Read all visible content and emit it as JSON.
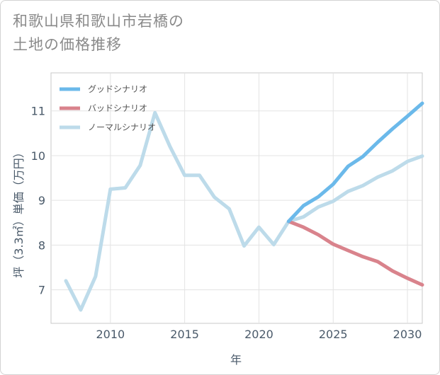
{
  "title_lines": [
    "和歌山県和歌山市岩橋の",
    "土地の価格推移"
  ],
  "chart_data": {
    "type": "line",
    "xlabel": "年",
    "ylabel": "坪（3.3㎡）単価（万円）",
    "xlim": [
      2006,
      2031
    ],
    "ylim": [
      6.25,
      11.85
    ],
    "xticks": [
      2010,
      2015,
      2020,
      2025,
      2030
    ],
    "yticks": [
      7,
      8,
      9,
      10,
      11
    ],
    "grid": true,
    "legend_position": "top-left",
    "series": [
      {
        "name": "グッドシナリオ",
        "color": "#6bb9ea",
        "x": [
          2022,
          2023,
          2024,
          2025,
          2026,
          2027,
          2028,
          2029,
          2030,
          2031
        ],
        "y": [
          8.53,
          8.88,
          9.08,
          9.36,
          9.76,
          9.98,
          10.3,
          10.6,
          10.88,
          11.17
        ]
      },
      {
        "name": "バッドシナリオ",
        "color": "#d9838c",
        "x": [
          2022,
          2023,
          2024,
          2025,
          2026,
          2027,
          2028,
          2029,
          2030,
          2031
        ],
        "y": [
          8.53,
          8.4,
          8.23,
          8.02,
          7.88,
          7.74,
          7.63,
          7.42,
          7.26,
          7.11
        ]
      },
      {
        "name": "ノーマルシナリオ",
        "color": "#bddbea",
        "x": [
          2007,
          2008,
          2009,
          2010,
          2011,
          2012,
          2013,
          2014,
          2015,
          2016,
          2017,
          2018,
          2019,
          2020,
          2021,
          2022,
          2023,
          2024,
          2025,
          2026,
          2027,
          2028,
          2029,
          2030,
          2031
        ],
        "y": [
          7.2,
          6.55,
          7.3,
          9.25,
          9.28,
          9.78,
          10.96,
          10.21,
          9.56,
          9.56,
          9.07,
          8.81,
          7.98,
          8.4,
          8.01,
          8.53,
          8.63,
          8.85,
          8.98,
          9.2,
          9.33,
          9.52,
          9.66,
          9.87,
          9.99
        ]
      }
    ]
  }
}
